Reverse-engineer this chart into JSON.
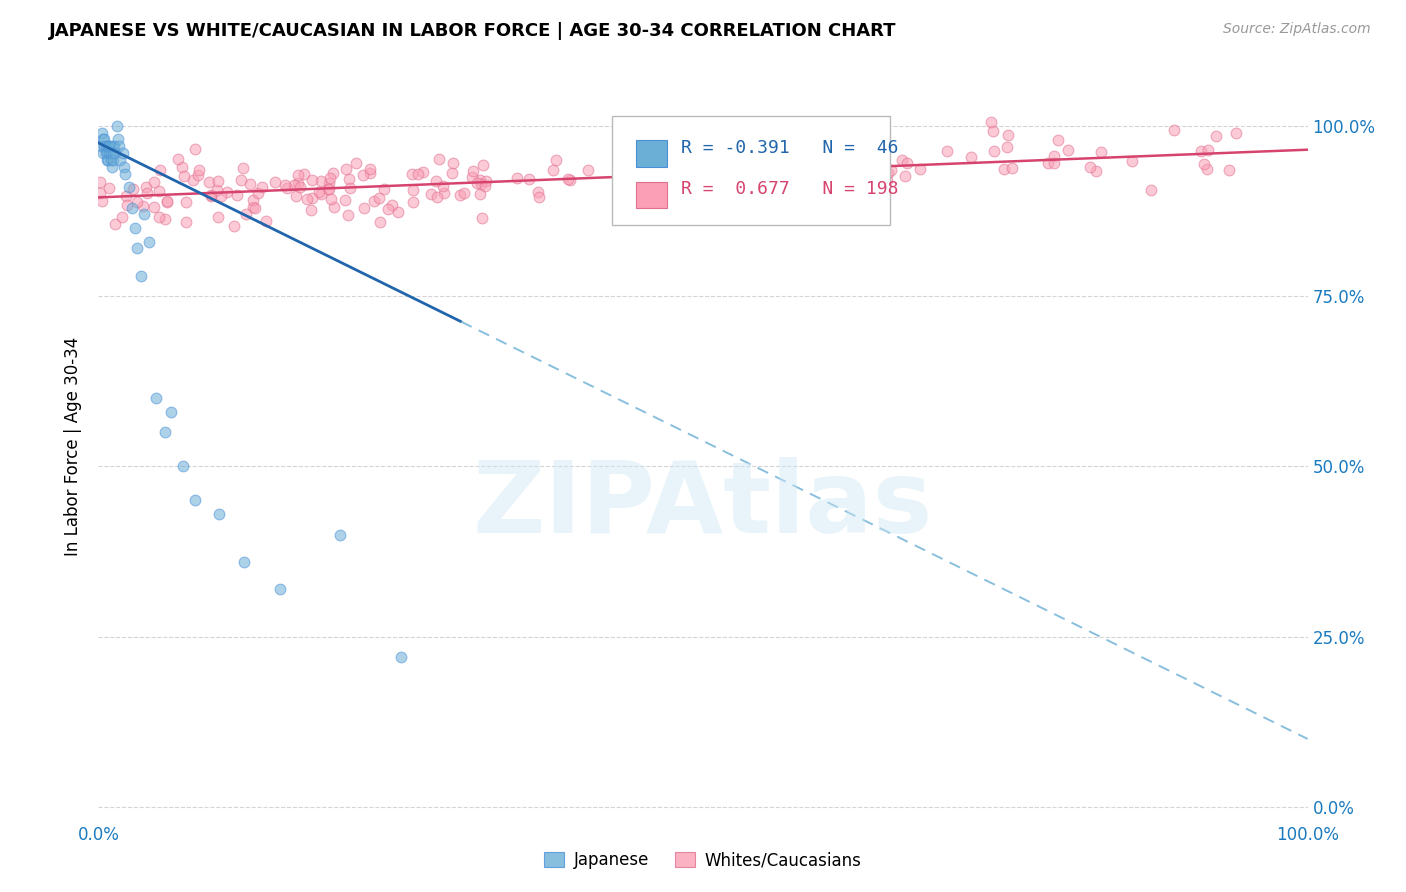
{
  "title": "JAPANESE VS WHITE/CAUCASIAN IN LABOR FORCE | AGE 30-34 CORRELATION CHART",
  "source": "Source: ZipAtlas.com",
  "ylabel": "In Labor Force | Age 30-34",
  "watermark": "ZIPAtlas",
  "legend": {
    "japanese": {
      "R": -0.391,
      "N": 46,
      "color": "#6baed6"
    },
    "caucasian": {
      "R": 0.677,
      "N": 198,
      "color": "#fa9fb5"
    }
  },
  "japanese_scatter": {
    "x": [
      0.002,
      0.003,
      0.004,
      0.004,
      0.005,
      0.005,
      0.006,
      0.006,
      0.007,
      0.007,
      0.008,
      0.008,
      0.009,
      0.009,
      0.01,
      0.01,
      0.011,
      0.011,
      0.012,
      0.012,
      0.013,
      0.014,
      0.015,
      0.016,
      0.017,
      0.018,
      0.02,
      0.021,
      0.022,
      0.025,
      0.028,
      0.03,
      0.032,
      0.035,
      0.038,
      0.042,
      0.048,
      0.055,
      0.06,
      0.07,
      0.08,
      0.1,
      0.12,
      0.15,
      0.2,
      0.25
    ],
    "y": [
      0.97,
      0.99,
      0.98,
      0.96,
      0.97,
      0.98,
      0.96,
      0.97,
      0.95,
      0.96,
      0.97,
      0.95,
      0.96,
      0.97,
      0.95,
      0.96,
      0.97,
      0.94,
      0.96,
      0.95,
      0.97,
      0.96,
      1.0,
      0.98,
      0.97,
      0.95,
      0.96,
      0.94,
      0.93,
      0.91,
      0.88,
      0.85,
      0.82,
      0.78,
      0.87,
      0.83,
      0.6,
      0.55,
      0.58,
      0.5,
      0.45,
      0.43,
      0.36,
      0.32,
      0.4,
      0.22
    ]
  },
  "blue_line": {
    "x0": 0.0,
    "y0": 0.975,
    "x1": 1.0,
    "y1": 0.1,
    "solid_end": 0.3
  },
  "pink_line": {
    "x0": 0.0,
    "y0": 0.895,
    "x1": 1.0,
    "y1": 0.965
  },
  "xlim": [
    0.0,
    1.0
  ],
  "ylim": [
    -0.02,
    1.08
  ],
  "yticks": [
    0.0,
    0.25,
    0.5,
    0.75,
    1.0
  ],
  "ytick_labels_right": [
    "0.0%",
    "25.0%",
    "50.0%",
    "75.0%",
    "100.0%"
  ],
  "xtick_labels": [
    "0.0%",
    "100.0%"
  ],
  "xtick_positions": [
    0.0,
    1.0
  ],
  "grid_color": "#d0d0d0",
  "background_color": "#ffffff",
  "scatter_size": 60,
  "scatter_alpha": 0.55,
  "jp_edgecolor": "#4a90d9",
  "ca_edgecolor": "#e07090"
}
